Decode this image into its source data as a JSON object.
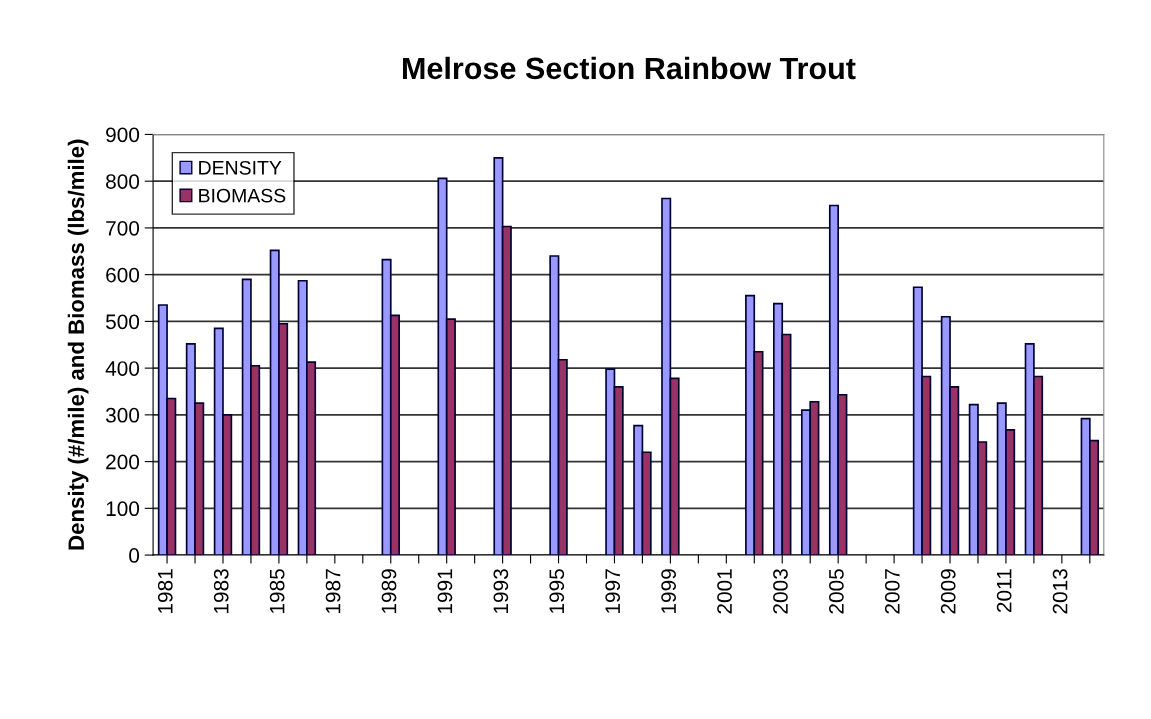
{
  "chart_data": {
    "type": "bar",
    "title": "Melrose Section Rainbow Trout",
    "ylabel": "Density (#/mile) and Biomass (lbs/mile)",
    "categories": [
      "1981",
      null,
      "1983",
      null,
      "1985",
      null,
      "1987",
      null,
      "1989",
      null,
      "1991",
      null,
      "1993",
      null,
      "1995",
      null,
      "1997",
      null,
      "1999",
      null,
      "2001",
      null,
      "2003",
      null,
      "2005",
      null,
      "2007",
      null,
      "2009",
      null,
      "2011",
      null,
      "2013",
      null
    ],
    "series": [
      {
        "name": "DENSITY",
        "color": "#9999ff",
        "values": [
          535,
          452,
          485,
          590,
          652,
          587,
          null,
          null,
          632,
          null,
          806,
          null,
          850,
          null,
          640,
          null,
          398,
          277,
          763,
          null,
          null,
          555,
          538,
          310,
          748,
          null,
          null,
          573,
          510,
          322,
          325,
          452,
          null,
          292
        ]
      },
      {
        "name": "BIOMASS",
        "color": "#993366",
        "values": [
          335,
          325,
          300,
          405,
          495,
          413,
          null,
          null,
          513,
          null,
          505,
          null,
          703,
          null,
          418,
          null,
          360,
          220,
          378,
          null,
          null,
          435,
          472,
          328,
          343,
          null,
          null,
          382,
          360,
          242,
          268,
          382,
          null,
          245
        ]
      }
    ],
    "ylim": [
      0,
      900
    ],
    "yticks": [
      0,
      100,
      200,
      300,
      400,
      500,
      600,
      700,
      800,
      900
    ],
    "grid": "y",
    "legend": "top left"
  }
}
